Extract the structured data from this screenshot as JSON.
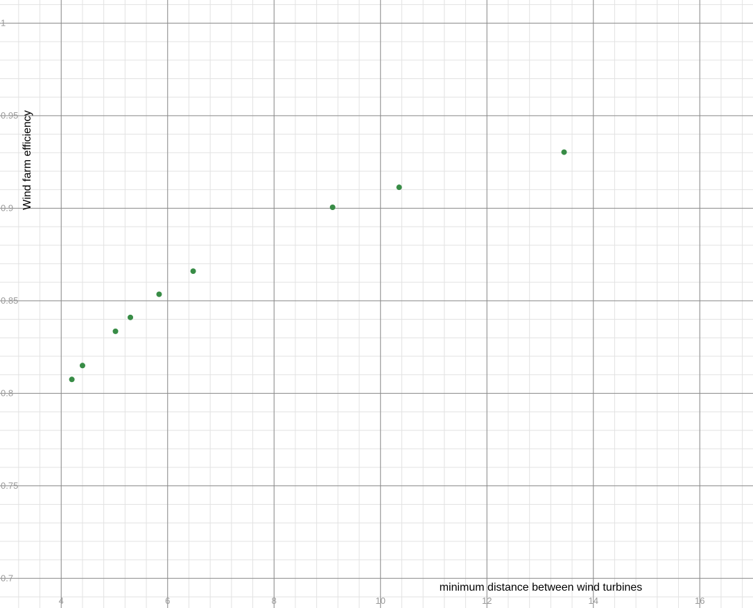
{
  "chart_data": {
    "type": "scatter",
    "title": "",
    "xlabel": "minimum distance between wind turbines",
    "ylabel": "Wind farm efficiency",
    "xlim": [
      2.85,
      17.0
    ],
    "ylim": [
      0.684,
      1.0125
    ],
    "grid": true,
    "x_ticks": [
      4,
      6,
      8,
      10,
      12,
      14,
      16
    ],
    "y_ticks": [
      0.7,
      0.75,
      0.8,
      0.85,
      0.9,
      0.95,
      1
    ],
    "x_tick_labels": [
      "4",
      "6",
      "8",
      "10",
      "12",
      "14",
      "16"
    ],
    "y_tick_labels": [
      "0.7",
      "0.75",
      "0.8",
      "0.85",
      "0.9",
      "0.95",
      "1"
    ],
    "point_color": "#388c46",
    "series": [
      {
        "x": [
          4.2,
          4.4,
          5.02,
          5.3,
          5.84,
          6.48,
          9.1,
          10.35,
          13.45
        ],
        "y": [
          0.8075,
          0.815,
          0.8335,
          0.841,
          0.8535,
          0.866,
          0.9005,
          0.9113,
          0.9303
        ]
      }
    ]
  }
}
